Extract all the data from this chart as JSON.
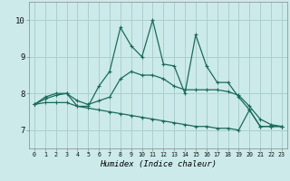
{
  "xlabel": "Humidex (Indice chaleur)",
  "bg_color": "#cceaea",
  "grid_color": "#aacfcf",
  "line_color": "#1a6b5a",
  "xlim": [
    -0.5,
    23.5
  ],
  "ylim": [
    6.5,
    10.5
  ],
  "yticks": [
    7,
    8,
    9,
    10
  ],
  "xticks": [
    0,
    1,
    2,
    3,
    4,
    5,
    6,
    7,
    8,
    9,
    10,
    11,
    12,
    13,
    14,
    15,
    16,
    17,
    18,
    19,
    20,
    21,
    22,
    23
  ],
  "series_spiky_x": [
    0,
    1,
    2,
    3,
    4,
    5,
    6,
    7,
    8,
    9,
    10,
    11,
    12,
    13,
    14,
    15,
    16,
    17,
    18,
    19,
    20,
    21,
    22,
    23
  ],
  "series_spiky_y": [
    7.7,
    7.9,
    8.0,
    8.0,
    7.65,
    7.65,
    8.2,
    8.6,
    9.8,
    9.3,
    9.0,
    10.0,
    8.8,
    8.75,
    8.0,
    9.6,
    8.75,
    8.3,
    8.3,
    7.9,
    7.55,
    7.1,
    7.1,
    7.1
  ],
  "series_mid_x": [
    0,
    1,
    2,
    3,
    4,
    5,
    6,
    7,
    8,
    9,
    10,
    11,
    12,
    13,
    14,
    15,
    16,
    17,
    18,
    19,
    20,
    21,
    22,
    23
  ],
  "series_mid_y": [
    7.7,
    7.85,
    7.95,
    8.0,
    7.8,
    7.7,
    7.8,
    7.9,
    8.4,
    8.6,
    8.5,
    8.5,
    8.4,
    8.2,
    8.1,
    8.1,
    8.1,
    8.1,
    8.05,
    7.95,
    7.65,
    7.3,
    7.15,
    7.1
  ],
  "series_low_x": [
    0,
    1,
    2,
    3,
    4,
    5,
    6,
    7,
    8,
    9,
    10,
    11,
    12,
    13,
    14,
    15,
    16,
    17,
    18,
    19,
    20,
    21,
    22,
    23
  ],
  "series_low_y": [
    7.7,
    7.75,
    7.75,
    7.75,
    7.65,
    7.6,
    7.55,
    7.5,
    7.45,
    7.4,
    7.35,
    7.3,
    7.25,
    7.2,
    7.15,
    7.1,
    7.1,
    7.05,
    7.05,
    7.0,
    7.55,
    7.1,
    7.1,
    7.1
  ]
}
